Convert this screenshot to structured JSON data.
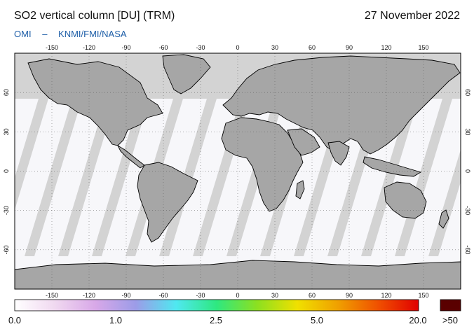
{
  "header": {
    "title": "SO2 vertical column [DU] (TRM)",
    "date": "27 November 2022",
    "credit_instrument": "OMI",
    "credit_sep": "–",
    "credit_agencies": "KNMI/FMI/NASA"
  },
  "map": {
    "projection": "equirectangular",
    "lon_ticks": [
      "-150",
      "-120",
      "-90",
      "-60",
      "-30",
      "0",
      "30",
      "60",
      "90",
      "120",
      "150"
    ],
    "lat_ticks": [
      "60",
      "30",
      "0",
      "-30",
      "-60"
    ],
    "colors": {
      "land_shade": "#a6a6a6",
      "no_data": "#d3d3d3",
      "swath": "#f7f7fa",
      "coast": "#000000"
    }
  },
  "colorbar": {
    "labels": [
      "0.0",
      "1.0",
      "2.5",
      "5.0",
      "20.0"
    ],
    "overflow_label": ">50",
    "overflow_color": "#5a0000",
    "gradient_colors": [
      "#ffffff",
      "#f0d8f0",
      "#d8a8e8",
      "#9c9ce8",
      "#4fe8f0",
      "#2ee880",
      "#8ce020",
      "#f0e000",
      "#f0a000",
      "#f05000",
      "#e00000"
    ]
  }
}
